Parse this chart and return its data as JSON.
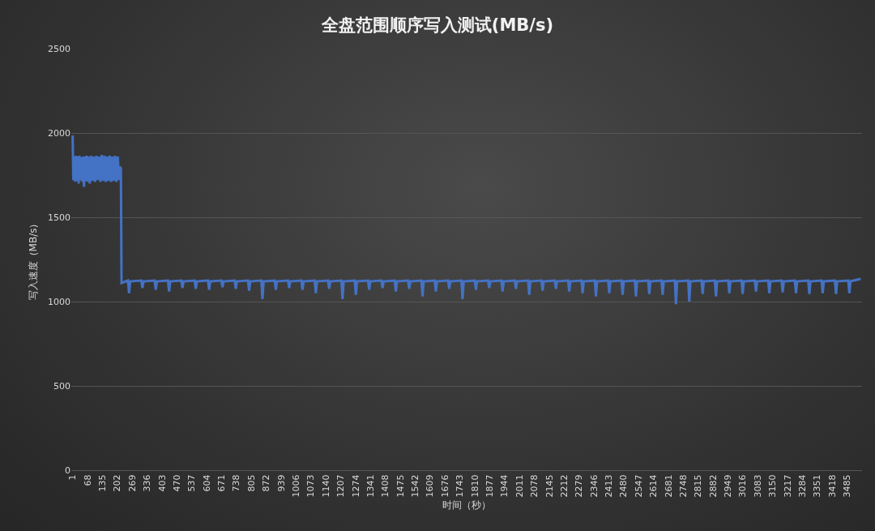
{
  "chart_data": {
    "type": "line",
    "title": "全盘范围顺序写入测试(MB/s)",
    "xlabel": "时间（秒）",
    "ylabel": "写入速度（MB/s）",
    "x": [
      1,
      4,
      8,
      12,
      16,
      20,
      24,
      28,
      32,
      36,
      40,
      44,
      48,
      52,
      56,
      60,
      64,
      68,
      72,
      78,
      84,
      90,
      96,
      102,
      108,
      114,
      120,
      126,
      132,
      138,
      144,
      150,
      156,
      162,
      168,
      174,
      180,
      186,
      192,
      198,
      204,
      210,
      214,
      218,
      221,
      250,
      255,
      260,
      310,
      315,
      320,
      370,
      375,
      380,
      430,
      435,
      440,
      490,
      495,
      500,
      550,
      555,
      560,
      610,
      615,
      620,
      670,
      675,
      680,
      730,
      735,
      740,
      790,
      795,
      800,
      850,
      855,
      860,
      910,
      915,
      920,
      970,
      975,
      980,
      1030,
      1035,
      1040,
      1090,
      1095,
      1100,
      1150,
      1155,
      1160,
      1210,
      1215,
      1220,
      1270,
      1275,
      1280,
      1330,
      1335,
      1340,
      1390,
      1395,
      1400,
      1450,
      1455,
      1460,
      1510,
      1515,
      1520,
      1570,
      1575,
      1580,
      1630,
      1635,
      1640,
      1690,
      1695,
      1700,
      1750,
      1755,
      1760,
      1810,
      1815,
      1820,
      1870,
      1875,
      1880,
      1930,
      1935,
      1940,
      1990,
      1995,
      2000,
      2050,
      2055,
      2060,
      2110,
      2115,
      2120,
      2170,
      2175,
      2180,
      2230,
      2235,
      2240,
      2290,
      2295,
      2300,
      2350,
      2355,
      2360,
      2410,
      2415,
      2420,
      2470,
      2475,
      2480,
      2530,
      2535,
      2540,
      2590,
      2595,
      2600,
      2650,
      2655,
      2660,
      2710,
      2715,
      2720,
      2770,
      2775,
      2780,
      2830,
      2835,
      2840,
      2890,
      2895,
      2900,
      2950,
      2955,
      2960,
      3010,
      3015,
      3020,
      3070,
      3075,
      3080,
      3130,
      3135,
      3140,
      3190,
      3195,
      3200,
      3250,
      3255,
      3260,
      3310,
      3315,
      3320,
      3370,
      3375,
      3380,
      3430,
      3435,
      3440,
      3490,
      3495,
      3500,
      3546
    ],
    "series": [
      {
        "color": "#4472c4",
        "values": [
          1985,
          1720,
          1860,
          1710,
          1865,
          1715,
          1860,
          1700,
          1865,
          1720,
          1855,
          1710,
          1860,
          1680,
          1860,
          1715,
          1865,
          1710,
          1860,
          1700,
          1865,
          1715,
          1860,
          1710,
          1865,
          1720,
          1860,
          1710,
          1870,
          1715,
          1865,
          1710,
          1860,
          1715,
          1865,
          1710,
          1860,
          1715,
          1865,
          1710,
          1860,
          1720,
          1800,
          1790,
          1110,
          1125,
          1050,
          1120,
          1125,
          1080,
          1120,
          1125,
          1070,
          1120,
          1125,
          1060,
          1120,
          1125,
          1080,
          1120,
          1125,
          1075,
          1120,
          1125,
          1070,
          1120,
          1125,
          1085,
          1120,
          1125,
          1075,
          1120,
          1125,
          1065,
          1120,
          1125,
          1015,
          1120,
          1125,
          1070,
          1120,
          1125,
          1080,
          1120,
          1125,
          1070,
          1120,
          1125,
          1050,
          1120,
          1125,
          1075,
          1120,
          1125,
          1015,
          1120,
          1125,
          1040,
          1120,
          1125,
          1070,
          1120,
          1125,
          1080,
          1120,
          1125,
          1060,
          1120,
          1125,
          1075,
          1120,
          1125,
          1030,
          1120,
          1125,
          1060,
          1120,
          1125,
          1075,
          1120,
          1125,
          1015,
          1120,
          1125,
          1070,
          1120,
          1125,
          1080,
          1120,
          1125,
          1060,
          1120,
          1125,
          1075,
          1120,
          1125,
          1040,
          1120,
          1125,
          1065,
          1120,
          1125,
          1075,
          1120,
          1125,
          1060,
          1120,
          1125,
          1050,
          1120,
          1125,
          1030,
          1120,
          1125,
          1050,
          1120,
          1125,
          1040,
          1120,
          1125,
          1030,
          1120,
          1125,
          1045,
          1120,
          1125,
          1040,
          1120,
          1125,
          985,
          1120,
          1125,
          1000,
          1120,
          1125,
          1045,
          1120,
          1125,
          1030,
          1120,
          1125,
          1050,
          1120,
          1125,
          1045,
          1120,
          1125,
          1060,
          1120,
          1125,
          1050,
          1120,
          1125,
          1055,
          1120,
          1125,
          1050,
          1120,
          1125,
          1045,
          1120,
          1125,
          1050,
          1120,
          1125,
          1045,
          1120,
          1125,
          1050,
          1120,
          1135
        ]
      }
    ],
    "xlim": [
      -5,
      3552
    ],
    "xticks": [
      1,
      68,
      135,
      202,
      269,
      336,
      403,
      470,
      537,
      604,
      671,
      738,
      805,
      872,
      939,
      1006,
      1073,
      1140,
      1207,
      1274,
      1341,
      1408,
      1475,
      1542,
      1609,
      1676,
      1743,
      1810,
      1877,
      1944,
      2011,
      2078,
      2145,
      2212,
      2279,
      2346,
      2413,
      2480,
      2547,
      2614,
      2681,
      2748,
      2815,
      2882,
      2949,
      3016,
      3083,
      3150,
      3217,
      3284,
      3351,
      3418,
      3485
    ],
    "ylim": [
      0,
      2500
    ],
    "yticks": [
      0,
      500,
      1000,
      1500,
      2000,
      2500
    ],
    "grid": "y",
    "marker": "none",
    "line_style": "solid"
  }
}
